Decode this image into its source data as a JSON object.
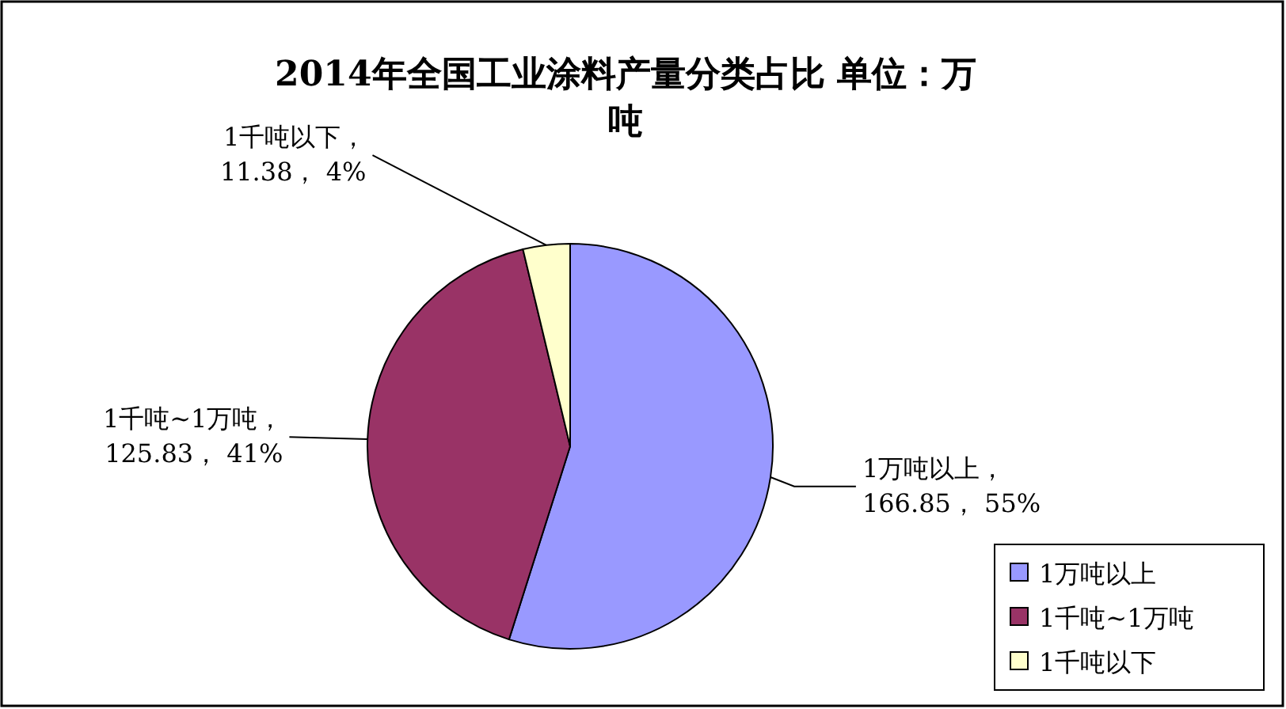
{
  "chart_data": {
    "type": "pie",
    "title": "2014年全国工业涂料产量分类占比 单位：万吨",
    "categories": [
      "1万吨以上",
      "1千吨~1万吨",
      "1千吨以下"
    ],
    "values": [
      166.85,
      125.83,
      11.38
    ],
    "colors": [
      "#9999ff",
      "#993366",
      "#ffffcc"
    ],
    "value_labels": [
      "1万吨以上，\n166.85， 55%",
      "1千吨~1万吨，\n125.83， 41%",
      "1千吨以下，\n11.38， 4%"
    ],
    "legend": "bottom right"
  }
}
